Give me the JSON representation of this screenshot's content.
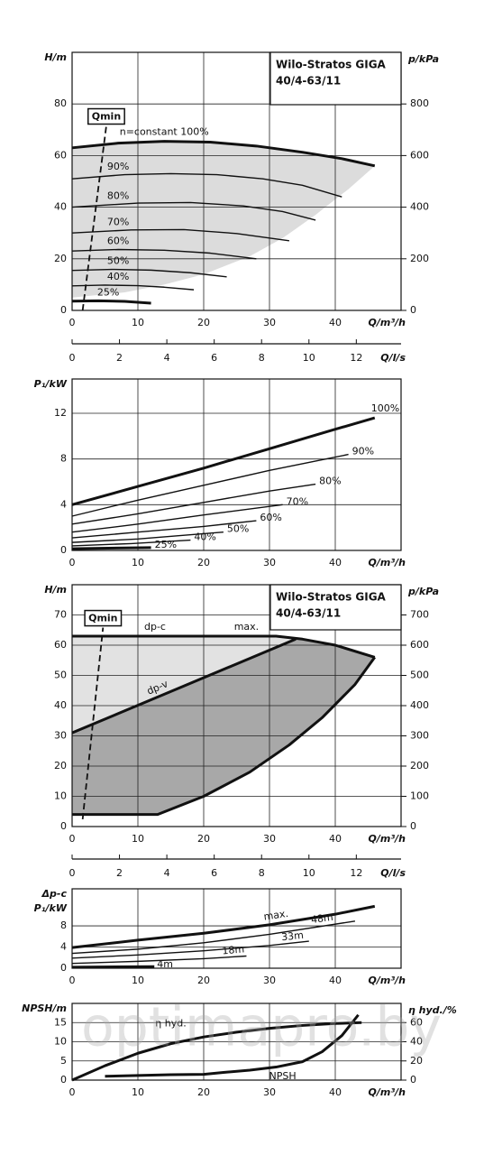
{
  "watermark": "optimapro.by",
  "chart_data": [
    {
      "type": "line",
      "title": [
        "Wilo-Stratos GIGA",
        "40/4-63/11"
      ],
      "ylabel": [
        "H/m"
      ],
      "y2label": "p/kPa",
      "xlabel": "Q/m³/h",
      "x2label": "Q/l/s",
      "xlim": [
        0,
        50
      ],
      "xticks": [
        0,
        10,
        20,
        30,
        40
      ],
      "ylim": [
        0,
        100
      ],
      "yticks": [
        0,
        20,
        40,
        60,
        80
      ],
      "y2lim": [
        0,
        1000
      ],
      "y2ticks": [
        0,
        200,
        400,
        600,
        800
      ],
      "x2lim": [
        0,
        13.89
      ],
      "x2ticks": [
        0,
        2,
        4,
        6,
        8,
        10,
        12
      ],
      "grid": true,
      "areas": [
        {
          "color": "#dcdcdc",
          "x": [
            0,
            7,
            14,
            21,
            28,
            35,
            41,
            46,
            42,
            37,
            32,
            27,
            20,
            14,
            8,
            0
          ],
          "y": [
            63,
            64.8,
            65.5,
            65.2,
            63.7,
            61.3,
            58.8,
            56,
            47,
            37,
            28,
            21,
            14,
            10,
            7,
            5
          ]
        }
      ],
      "series": [
        {
          "name": "n=constant 100%",
          "color": "#111111",
          "style": "bold",
          "x": [
            0,
            7,
            14,
            21,
            28,
            35,
            41,
            46
          ],
          "values": [
            63,
            64.8,
            65.5,
            65.2,
            63.7,
            61.3,
            58.8,
            56
          ]
        },
        {
          "name": "90%",
          "color": "#111111",
          "style": "thin",
          "x": [
            0,
            8,
            15,
            22,
            29,
            35,
            41
          ],
          "values": [
            51,
            52.6,
            53,
            52.6,
            51,
            48.5,
            44
          ]
        },
        {
          "name": "80%",
          "color": "#111111",
          "style": "thin",
          "x": [
            0,
            10,
            18,
            26,
            32,
            37
          ],
          "values": [
            40,
            41.6,
            41.8,
            40.5,
            38.3,
            35
          ]
        },
        {
          "name": "70%",
          "color": "#111111",
          "style": "thin",
          "x": [
            0,
            9,
            17,
            25,
            33
          ],
          "values": [
            30,
            31.2,
            31.3,
            29.8,
            27
          ]
        },
        {
          "name": "60%",
          "color": "#111111",
          "style": "thin",
          "x": [
            0,
            7,
            14,
            21,
            28
          ],
          "values": [
            23,
            23.6,
            23.3,
            22.2,
            20
          ]
        },
        {
          "name": "50%",
          "color": "#111111",
          "style": "thin",
          "x": [
            0,
            6,
            12,
            18,
            23.5
          ],
          "values": [
            15.5,
            15.9,
            15.6,
            14.6,
            13
          ]
        },
        {
          "name": "40%",
          "color": "#111111",
          "style": "thin",
          "x": [
            0,
            5,
            10,
            14,
            18.5
          ],
          "values": [
            9.5,
            9.8,
            9.6,
            9,
            8
          ]
        },
        {
          "name": "25%",
          "color": "#111111",
          "style": "bold",
          "x": [
            0,
            4,
            8,
            12
          ],
          "values": [
            3.6,
            3.7,
            3.5,
            2.8
          ]
        },
        {
          "name": "Qmin",
          "color": "#111111",
          "style": "dashed",
          "x": [
            1.6,
            5.2
          ],
          "values": [
            0,
            71.5
          ]
        }
      ]
    },
    {
      "type": "line",
      "ylabel": [
        "P₁/kW"
      ],
      "xlabel": "Q/m³/h",
      "xlim": [
        0,
        50
      ],
      "xticks": [
        0,
        10,
        20,
        30,
        40
      ],
      "ylim": [
        0,
        15
      ],
      "yticks": [
        0,
        4,
        8,
        12
      ],
      "grid": true,
      "series": [
        {
          "name": "100%",
          "color": "#111111",
          "style": "bold",
          "x": [
            0,
            10,
            20,
            30,
            40,
            46
          ],
          "values": [
            4,
            5.6,
            7.2,
            8.9,
            10.6,
            11.6
          ]
        },
        {
          "name": "90%",
          "color": "#111111",
          "style": "thin",
          "x": [
            0,
            10,
            20,
            30,
            42
          ],
          "values": [
            3,
            4.4,
            5.7,
            7,
            8.4
          ]
        },
        {
          "name": "80%",
          "color": "#111111",
          "style": "thin",
          "x": [
            0,
            10,
            20,
            30,
            37
          ],
          "values": [
            2.3,
            3.2,
            4.2,
            5.2,
            5.8
          ]
        },
        {
          "name": "70%",
          "color": "#111111",
          "style": "thin",
          "x": [
            0,
            10,
            20,
            32
          ],
          "values": [
            1.6,
            2.3,
            3.1,
            4
          ]
        },
        {
          "name": "60%",
          "color": "#111111",
          "style": "thin",
          "x": [
            0,
            10,
            20,
            28
          ],
          "values": [
            1.1,
            1.6,
            2.1,
            2.6
          ]
        },
        {
          "name": "50%",
          "color": "#111111",
          "style": "thin",
          "x": [
            0,
            10,
            23
          ],
          "values": [
            0.7,
            1,
            1.6
          ]
        },
        {
          "name": "40%",
          "color": "#111111",
          "style": "thin",
          "x": [
            0,
            9,
            18
          ],
          "values": [
            0.4,
            0.6,
            0.9
          ]
        },
        {
          "name": "25%",
          "color": "#111111",
          "style": "bold",
          "x": [
            0,
            12
          ],
          "values": [
            0.15,
            0.25
          ]
        }
      ]
    },
    {
      "type": "line",
      "title": [
        "Wilo-Stratos GIGA",
        "40/4-63/11"
      ],
      "ylabel": [
        "H/m"
      ],
      "y2label": "p/kPa",
      "xlabel": "Q/m³/h",
      "x2label": "Q/l/s",
      "xlim": [
        0,
        50
      ],
      "xticks": [
        0,
        10,
        20,
        30,
        40
      ],
      "ylim": [
        0,
        80
      ],
      "yticks": [
        0,
        10,
        20,
        30,
        40,
        50,
        60,
        70
      ],
      "y2lim": [
        0,
        800
      ],
      "y2ticks": [
        0,
        100,
        200,
        300,
        400,
        500,
        600,
        700
      ],
      "x2lim": [
        0,
        13.89
      ],
      "x2ticks": [
        0,
        2,
        4,
        6,
        8,
        10,
        12
      ],
      "grid": true,
      "areas": [
        {
          "color": "#e2e2e2",
          "x": [
            0,
            31,
            34,
            0
          ],
          "y": [
            63,
            63,
            62,
            31
          ]
        },
        {
          "color": "#a8a8a8",
          "x": [
            0,
            34,
            40,
            46,
            43,
            38,
            33,
            27,
            20,
            13,
            0
          ],
          "y": [
            31,
            62,
            60,
            56,
            47,
            36,
            27,
            18,
            10,
            4,
            4
          ]
        }
      ],
      "series": [
        {
          "name": "dp-c",
          "color": "#111111",
          "style": "bold",
          "x": [
            0,
            31
          ],
          "values": [
            63,
            63
          ]
        },
        {
          "name": "max.",
          "color": "#111111",
          "style": "bold",
          "x": [
            0,
            31,
            35,
            40,
            46
          ],
          "values": [
            63,
            63,
            62,
            60,
            56
          ]
        },
        {
          "name": "dp-v",
          "color": "#111111",
          "style": "bold",
          "x": [
            0,
            34
          ],
          "values": [
            31,
            62
          ]
        },
        {
          "color": "#111111",
          "style": "bold",
          "x": [
            0,
            13,
            20,
            27,
            33,
            38,
            43,
            46
          ],
          "values": [
            4,
            4,
            10,
            18,
            27,
            36,
            47,
            56
          ]
        },
        {
          "name": "Qmin",
          "color": "#111111",
          "style": "dashed",
          "x": [
            1.6,
            4.7
          ],
          "values": [
            2.4,
            65.8
          ]
        }
      ]
    },
    {
      "type": "line",
      "ylabel": [
        "Δp-c",
        "P₁/kW"
      ],
      "xlabel": "Q/m³/h",
      "xlim": [
        0,
        50
      ],
      "xticks": [
        0,
        10,
        20,
        30,
        40
      ],
      "ylim": [
        0,
        15
      ],
      "yticks": [
        0,
        4,
        8
      ],
      "grid": true,
      "series": [
        {
          "name": "max.",
          "color": "#111111",
          "style": "bold",
          "x": [
            0,
            10,
            20,
            30,
            40,
            46
          ],
          "values": [
            3.9,
            5.3,
            6.6,
            8.2,
            10.2,
            11.7
          ]
        },
        {
          "name": "48m",
          "color": "#111111",
          "style": "thin",
          "x": [
            0,
            10,
            20,
            30,
            43
          ],
          "values": [
            2.8,
            3.6,
            4.8,
            6.4,
            8.9
          ]
        },
        {
          "name": "33m",
          "color": "#111111",
          "style": "thin",
          "x": [
            0,
            10,
            20,
            30,
            36
          ],
          "values": [
            1.9,
            2.5,
            3.3,
            4.3,
            5.1
          ]
        },
        {
          "name": "18m",
          "color": "#111111",
          "style": "thin",
          "x": [
            0,
            10,
            20,
            26.5
          ],
          "values": [
            0.9,
            1.3,
            1.8,
            2.3
          ]
        },
        {
          "name": "4m",
          "color": "#111111",
          "style": "bold",
          "x": [
            0,
            12.5
          ],
          "values": [
            0.2,
            0.3
          ]
        }
      ]
    },
    {
      "type": "line",
      "ylabel": [
        "NPSH/m"
      ],
      "y2label": "η hyd./%",
      "xlabel": "Q/m³/h",
      "xlim": [
        0,
        50
      ],
      "xticks": [
        0,
        10,
        20,
        30,
        40
      ],
      "ylim": [
        0,
        20
      ],
      "yticks": [
        0,
        5,
        10,
        15
      ],
      "y2lim": [
        0,
        80
      ],
      "y2ticks": [
        0,
        20,
        40,
        60
      ],
      "grid": true,
      "series": [
        {
          "name": "η hyd.",
          "color": "#111111",
          "style": "bold",
          "axis": "y2",
          "x": [
            0,
            5,
            10,
            15,
            20,
            25,
            30,
            35,
            40,
            44
          ],
          "values": [
            0,
            15,
            28,
            38,
            45,
            50,
            54,
            57,
            59,
            60
          ]
        },
        {
          "name": "NPSH",
          "color": "#111111",
          "style": "bold",
          "x": [
            5,
            10,
            15,
            20,
            23,
            27,
            31,
            35,
            38,
            41,
            43.5
          ],
          "values": [
            1,
            1.2,
            1.4,
            1.5,
            2,
            2.6,
            3.4,
            4.8,
            7.4,
            11.6,
            17
          ]
        }
      ]
    }
  ]
}
